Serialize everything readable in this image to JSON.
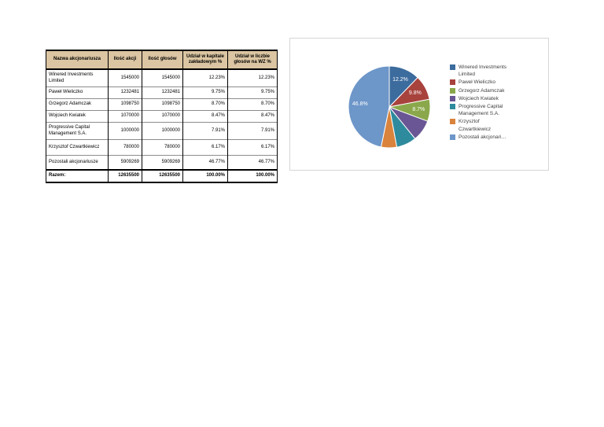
{
  "table": {
    "columns": [
      "Nazwa akcjonariusza",
      "Ilość akcji",
      "Ilość głosów",
      "Udział w kapitale zakładowym %",
      "Udział w liczbie głosów na WZ %"
    ],
    "rows": [
      [
        "Winered Investments Limited",
        "1545000",
        "1545000",
        "12.23%",
        "12.23%"
      ],
      [
        "Paweł Wieliczko",
        "1232481",
        "1232481",
        "9.75%",
        "9.75%"
      ],
      [
        "Grzegorz Adamczak",
        "1098750",
        "1098750",
        "8.70%",
        "8.70%"
      ],
      [
        "Wojciech Kwiatek",
        "1070000",
        "1070000",
        "8.47%",
        "8.47%"
      ],
      [
        "Progressive Capital Management S.A.",
        "1000000",
        "1000000",
        "7.91%",
        "7.91%"
      ],
      [
        "Krzysztof Czwartkiewicz",
        "780000",
        "780000",
        "6.17%",
        "6.17%"
      ],
      [
        "Pozostali akcjonariusze",
        "5909269",
        "5909269",
        "46.77%",
        "46.77%"
      ]
    ],
    "total_row": [
      "Razem:",
      "12635500",
      "12635500",
      "100.00%",
      "100.00%"
    ],
    "header_bg": "#DBC5A2"
  },
  "chart_data": {
    "type": "pie",
    "title": "",
    "categories": [
      "Winered Investments Limited",
      "Paweł Wieliczko",
      "Grzegorz Adamczak",
      "Wojciech Kwiatek",
      "Progressive Capital Management S.A.",
      "Krzysztof Czwartkiewicz",
      "Pozostali akcjonariusze"
    ],
    "values": [
      12.23,
      9.75,
      8.7,
      8.47,
      7.91,
      6.17,
      46.77
    ],
    "slice_labels": [
      "12.2%",
      "9.8%",
      "8.7%",
      null,
      null,
      null,
      "46.8%"
    ],
    "colors": [
      "#3C6B9E",
      "#A8423D",
      "#8AA84B",
      "#6A5694",
      "#2E8B9D",
      "#D9833C",
      "#6D96C9"
    ],
    "start_angle_deg": 0,
    "direction": "clockwise",
    "legend_position": "right",
    "legend": {
      "entries": [
        {
          "lines": [
            "Winered Investments",
            "Limited"
          ]
        },
        {
          "lines": [
            "Paweł Wieliczko"
          ]
        },
        {
          "lines": [
            "Grzegorz Adamczak"
          ]
        },
        {
          "lines": [
            "Wojciech Kwiatek"
          ]
        },
        {
          "lines": [
            "Progressive Capital",
            "Management S.A."
          ]
        },
        {
          "lines": [
            "Krzysztof",
            "Czwartkiewicz"
          ]
        },
        {
          "lines": [
            "Pozostali akcjonari…"
          ]
        }
      ]
    }
  }
}
